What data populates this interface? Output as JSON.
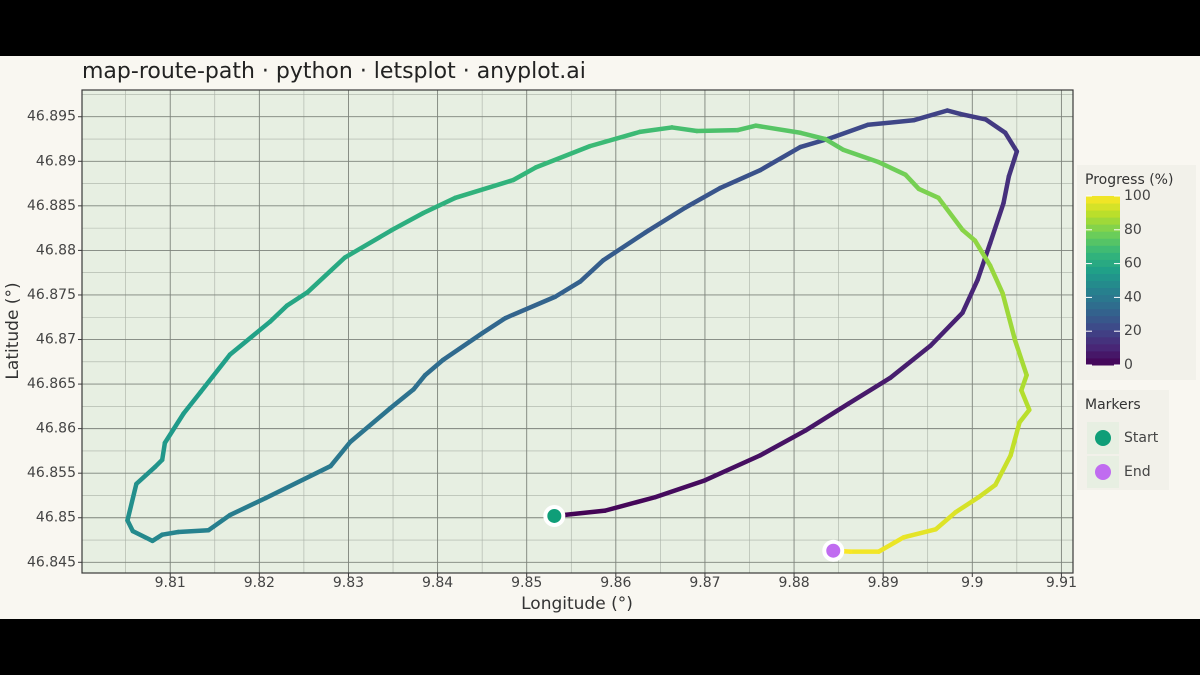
{
  "chart_data": {
    "type": "path",
    "title": "map-route-path · python · letsplot · anyplot.ai",
    "x_label": "Longitude (°)",
    "y_label": "Latitude (°)",
    "xlim": [
      9.8001,
      9.9113
    ],
    "ylim": [
      46.8438,
      46.898
    ],
    "xticks": [
      9.81,
      9.82,
      9.83,
      9.84,
      9.85,
      9.86,
      9.87,
      9.88,
      9.89,
      9.9,
      9.91
    ],
    "yticks": [
      46.845,
      46.85,
      46.855,
      46.86,
      46.865,
      46.87,
      46.875,
      46.88,
      46.885,
      46.89,
      46.895
    ],
    "grid": true,
    "route": {
      "x": [
        9.8531,
        9.8588,
        9.8644,
        9.87,
        9.8762,
        9.8813,
        9.8861,
        9.8908,
        9.8953,
        9.8989,
        9.9006,
        9.902,
        9.9035,
        9.9041,
        9.905,
        9.9037,
        9.9015,
        9.8987,
        9.8972,
        9.8934,
        9.8883,
        9.8841,
        9.8807,
        9.8762,
        9.8717,
        9.8678,
        9.8633,
        9.8586,
        9.856,
        9.8532,
        9.8476,
        9.845,
        9.8406,
        9.8386,
        9.8373,
        9.8347,
        9.8302,
        9.828,
        9.8207,
        9.8167,
        9.8143,
        9.8109,
        9.8091,
        9.808,
        9.8058,
        9.8052,
        9.8062,
        9.8083,
        9.8091,
        9.8094,
        9.8115,
        9.8134,
        9.8167,
        9.8212,
        9.8231,
        9.8254,
        9.8296,
        9.8349,
        9.8384,
        9.842,
        9.8485,
        9.851,
        9.8571,
        9.8627,
        9.8663,
        9.8691,
        9.8737,
        9.8757,
        9.8807,
        9.8835,
        9.8855,
        9.8895,
        9.8925,
        9.894,
        9.8962,
        9.8989,
        9.9003,
        9.902,
        9.9034,
        9.9048,
        9.9061,
        9.9055,
        9.9064,
        9.9053,
        9.9043,
        9.9026,
        9.9007,
        9.8981,
        9.8959,
        9.8923,
        9.8895,
        9.8863,
        9.8844
      ],
      "y": [
        46.8502,
        46.8508,
        46.8523,
        46.8542,
        46.857,
        46.8598,
        46.8628,
        46.8657,
        46.8693,
        46.873,
        46.8767,
        46.8808,
        46.8853,
        46.8883,
        46.8911,
        46.8932,
        46.8947,
        46.8953,
        46.8957,
        46.8946,
        46.8941,
        46.8926,
        46.8916,
        46.889,
        46.887,
        46.8848,
        46.882,
        46.8789,
        46.8765,
        46.8748,
        46.8724,
        46.8707,
        46.8677,
        46.866,
        46.8644,
        46.8623,
        46.8585,
        46.8558,
        46.8522,
        46.8503,
        46.8486,
        46.8484,
        46.8481,
        46.8474,
        46.8485,
        46.8497,
        46.8538,
        46.8557,
        46.8565,
        46.8584,
        46.8617,
        46.8641,
        46.8683,
        46.872,
        46.8738,
        46.8753,
        46.8792,
        46.8823,
        46.8842,
        46.8859,
        46.8879,
        46.8893,
        46.8917,
        46.8933,
        46.8938,
        46.8934,
        46.8935,
        46.894,
        46.8932,
        46.8925,
        46.8913,
        46.8899,
        46.8885,
        46.8869,
        46.8859,
        46.8823,
        46.8811,
        46.8783,
        46.8752,
        46.8699,
        46.866,
        46.8643,
        46.8621,
        46.8607,
        46.857,
        46.8537,
        46.8523,
        46.8506,
        46.8487,
        46.8478,
        46.8462,
        46.8462,
        46.8463
      ],
      "progress": [
        0,
        1.1,
        2.2,
        3.3,
        4.3,
        5.4,
        6.5,
        7.6,
        8.7,
        9.8,
        10.9,
        12.0,
        13.0,
        14.1,
        15.2,
        16.3,
        17.4,
        18.5,
        19.6,
        20.7,
        21.7,
        22.8,
        23.9,
        25.0,
        26.1,
        27.2,
        28.3,
        29.3,
        30.4,
        31.5,
        32.6,
        33.7,
        34.8,
        35.9,
        37.0,
        38.0,
        39.1,
        40.2,
        41.3,
        42.4,
        43.5,
        44.6,
        45.7,
        46.7,
        47.8,
        48.9,
        50.0,
        51.1,
        52.2,
        53.3,
        54.3,
        55.4,
        56.5,
        57.6,
        58.7,
        59.8,
        60.9,
        62.0,
        63.0,
        64.1,
        65.2,
        66.3,
        67.4,
        68.5,
        69.6,
        70.7,
        71.7,
        72.8,
        73.9,
        75.0,
        76.1,
        77.2,
        78.3,
        79.3,
        80.4,
        81.5,
        82.6,
        83.7,
        84.8,
        85.9,
        87.0,
        88.0,
        89.1,
        90.2,
        91.3,
        92.4,
        93.5,
        94.6,
        95.7,
        96.7,
        97.8,
        98.9,
        100
      ]
    },
    "colorbar": {
      "title": "Progress (%)",
      "colormap": "viridis",
      "lim": [
        0,
        100
      ],
      "ticks": [
        0,
        20,
        40,
        60,
        80,
        100
      ]
    },
    "markers": {
      "title": "Markers",
      "items": [
        {
          "name": "Start",
          "color": "#0f9e78",
          "x": 9.8531,
          "y": 46.8502
        },
        {
          "name": "End",
          "color": "#c06cf0",
          "x": 9.8844,
          "y": 46.8463
        }
      ]
    }
  }
}
